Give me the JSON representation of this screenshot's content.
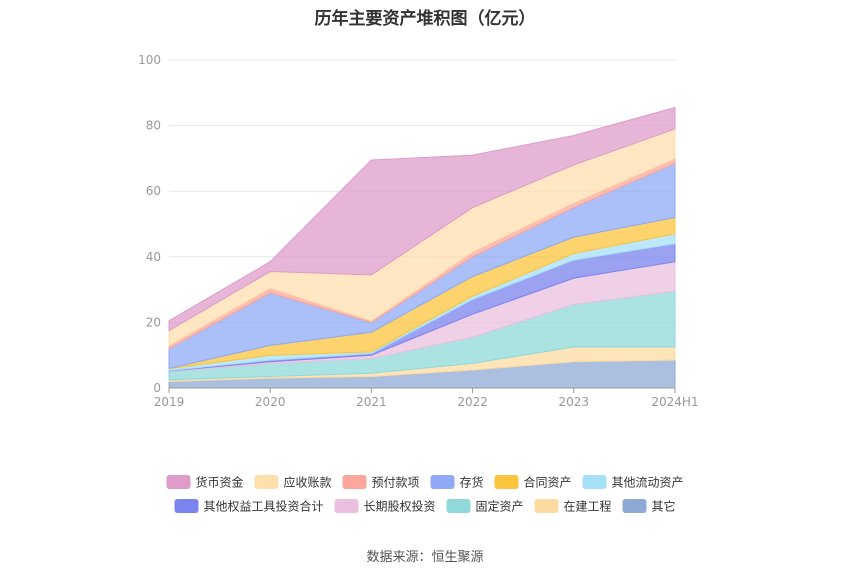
{
  "chart_data": {
    "type": "area",
    "stacked": true,
    "title": "历年主要资产堆积图（亿元）",
    "xlabel": "",
    "ylabel": "",
    "ylim": [
      0,
      100
    ],
    "yticks": [
      0,
      20,
      40,
      60,
      80,
      100
    ],
    "categories": [
      "2019",
      "2020",
      "2021",
      "2022",
      "2023",
      "2024H1"
    ],
    "grid": true,
    "legend": "bottom",
    "series": [
      {
        "name": "其它",
        "color": "#8fa9d6",
        "values": [
          2.0,
          3.0,
          3.5,
          5.5,
          8.0,
          8.5
        ]
      },
      {
        "name": "在建工程",
        "color": "#fedba1",
        "values": [
          0.5,
          0.5,
          1.0,
          2.0,
          4.5,
          4.0
        ]
      },
      {
        "name": "固定资产",
        "color": "#8fd9d9",
        "values": [
          2.5,
          4.0,
          4.5,
          8.0,
          13.0,
          17.0
        ]
      },
      {
        "name": "长期股权投资",
        "color": "#ebc0de",
        "values": [
          0.2,
          0.5,
          1.0,
          7.0,
          8.0,
          9.0
        ]
      },
      {
        "name": "其他权益工具投资合计",
        "color": "#7b83ee",
        "values": [
          0.1,
          0.5,
          0.5,
          4.5,
          5.5,
          5.5
        ]
      },
      {
        "name": "其他流动资产",
        "color": "#a6e0f7",
        "values": [
          0.6,
          1.5,
          0.5,
          1.0,
          2.0,
          3.0
        ]
      },
      {
        "name": "合同资产",
        "color": "#fbc43c",
        "values": [
          0.1,
          3.0,
          6.0,
          6.0,
          5.0,
          5.0
        ]
      },
      {
        "name": "存货",
        "color": "#8fa9f6",
        "values": [
          6.0,
          16.0,
          3.0,
          6.0,
          9.0,
          16.5
        ]
      },
      {
        "name": "预付款项",
        "color": "#fba79b",
        "values": [
          1.0,
          1.5,
          0.5,
          1.5,
          1.5,
          1.5
        ]
      },
      {
        "name": "应收账款",
        "color": "#fedfae",
        "values": [
          4.5,
          5.0,
          14.0,
          13.5,
          11.5,
          9.0
        ]
      },
      {
        "name": "货币资金",
        "color": "#df9cca",
        "values": [
          3.0,
          3.0,
          35.0,
          16.0,
          9.0,
          6.5
        ]
      }
    ],
    "legend_order": [
      "货币资金",
      "应收账款",
      "预付款项",
      "存货",
      "合同资产",
      "其他流动资产",
      "其他权益工具投资合计",
      "长期股权投资",
      "固定资产",
      "在建工程",
      "其它"
    ]
  },
  "footer": {
    "source": "数据来源：恒生聚源"
  }
}
